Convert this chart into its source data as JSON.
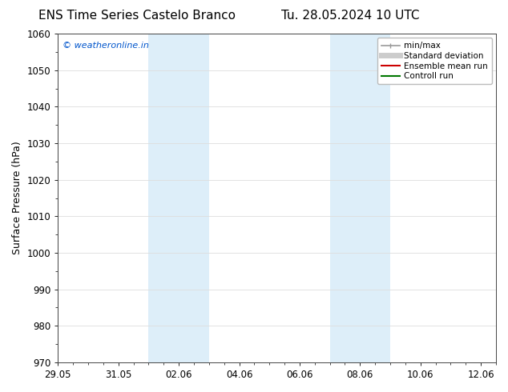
{
  "title_left": "ENS Time Series Castelo Branco",
  "title_right": "Tu. 28.05.2024 10 UTC",
  "ylabel": "Surface Pressure (hPa)",
  "ylim": [
    970,
    1060
  ],
  "yticks": [
    970,
    980,
    990,
    1000,
    1010,
    1020,
    1030,
    1040,
    1050,
    1060
  ],
  "xlim": [
    0,
    14
  ],
  "x_tick_labels": [
    "29.05",
    "31.05",
    "02.06",
    "04.06",
    "06.06",
    "08.06",
    "10.06",
    "12.06"
  ],
  "x_tick_positions": [
    0,
    2,
    4,
    6,
    8,
    10,
    12,
    14
  ],
  "shaded_bands": [
    {
      "x_start": 3.0,
      "x_end": 5.0
    },
    {
      "x_start": 9.0,
      "x_end": 11.0
    }
  ],
  "shaded_color": "#ddeef9",
  "background_color": "#ffffff",
  "watermark_text": "© weatheronline.in",
  "watermark_color": "#0055cc",
  "legend_items": [
    {
      "label": "min/max",
      "color": "#999999",
      "lw": 1.2
    },
    {
      "label": "Standard deviation",
      "color": "#cccccc",
      "lw": 5
    },
    {
      "label": "Ensemble mean run",
      "color": "#cc0000",
      "lw": 1.5
    },
    {
      "label": "Controll run",
      "color": "#007700",
      "lw": 1.5
    }
  ],
  "grid_color": "#dddddd",
  "spine_color": "#444444",
  "title_fontsize": 11,
  "tick_fontsize": 8.5,
  "label_fontsize": 9,
  "watermark_fontsize": 8,
  "legend_fontsize": 7.5
}
